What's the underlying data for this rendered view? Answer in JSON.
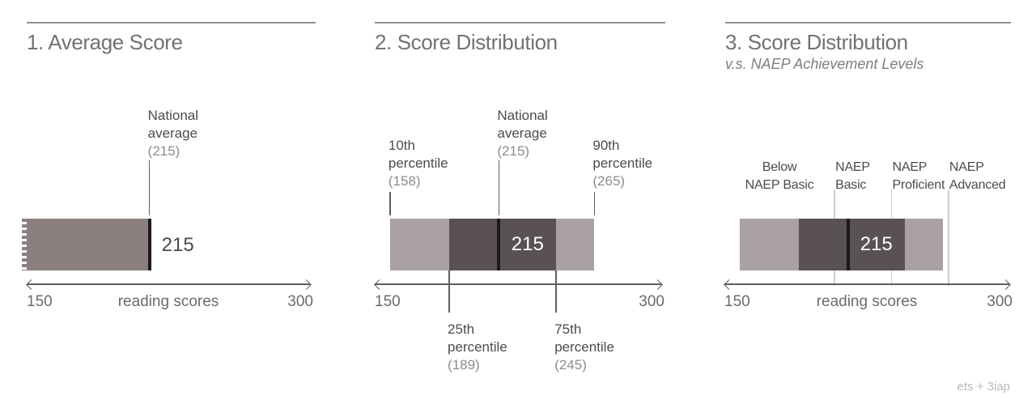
{
  "page": {
    "attribution": "ets + 3iap"
  },
  "colors": {
    "bar_medium": "#8b807f",
    "bar_light": "#aaa2a2",
    "bar_dark": "#5a5152",
    "marker_black": "#1b1b1b",
    "leader_dark": "#5f5f5f",
    "leader_light": "#d2cfcf",
    "axis": "#5d5d5d",
    "title_text": "#727272",
    "annotation_text": "#4b4b4b",
    "annotation_value_text": "#8d8d8d",
    "bar_value_on_dark": "#ffffff",
    "attribution_text": "#b9b9b9"
  },
  "chart_data": [
    {
      "type": "bar",
      "title": "1. Average Score",
      "subtitle": "",
      "xlabel": "reading scores",
      "xlim": [
        150,
        300
      ],
      "axis_labels": {
        "min": "150",
        "center": "reading scores",
        "max": "300"
      },
      "bar": {
        "segments": [
          {
            "from": 150,
            "to": 215,
            "color": "bar_medium",
            "torn_left": true
          }
        ],
        "marker_value": 215,
        "outside_value_label": "215"
      },
      "annotations_top": [
        {
          "lines": [
            "National",
            "average"
          ],
          "value_label": "(215)",
          "value": 215,
          "raised": true
        }
      ],
      "annotations_bottom": [],
      "thresholds": []
    },
    {
      "type": "bar",
      "title": "2. Score Distribution",
      "subtitle": "",
      "xlabel": "",
      "xlim": [
        150,
        300
      ],
      "axis_labels": {
        "min": "150",
        "center": "",
        "max": "300"
      },
      "bar": {
        "segments": [
          {
            "from": 158,
            "to": 189,
            "color": "bar_light"
          },
          {
            "from": 189,
            "to": 245,
            "color": "bar_dark"
          },
          {
            "from": 245,
            "to": 265,
            "color": "bar_light"
          }
        ],
        "marker_value": 215,
        "inside_value_label": {
          "text": "215",
          "center_value": 230
        }
      },
      "annotations_top": [
        {
          "lines": [
            "10th",
            "percentile"
          ],
          "value_label": "(158)",
          "value": 158,
          "raised": false
        },
        {
          "lines": [
            "National",
            "average"
          ],
          "value_label": "(215)",
          "value": 215,
          "raised": true
        },
        {
          "lines": [
            "90th",
            "percentile"
          ],
          "value_label": "(265)",
          "value": 265,
          "raised": false
        }
      ],
      "annotations_bottom": [
        {
          "lines": [
            "25th",
            "percentile"
          ],
          "value_label": "(189)",
          "value": 189
        },
        {
          "lines": [
            "75th",
            "percentile"
          ],
          "value_label": "(245)",
          "value": 245
        }
      ],
      "thresholds": []
    },
    {
      "type": "bar",
      "title": "3. Score Distribution",
      "subtitle": "v.s. NAEP Achievement Levels",
      "xlabel": "reading scores",
      "xlim": [
        150,
        300
      ],
      "axis_labels": {
        "min": "150",
        "center": "reading scores",
        "max": "300"
      },
      "bar": {
        "segments": [
          {
            "from": 158,
            "to": 189,
            "color": "bar_light"
          },
          {
            "from": 189,
            "to": 245,
            "color": "bar_dark"
          },
          {
            "from": 245,
            "to": 265,
            "color": "bar_light"
          }
        ],
        "marker_value": 215,
        "inside_value_label": {
          "text": "215",
          "center_value": 230
        }
      },
      "annotations_top": [],
      "annotations_bottom": [],
      "thresholds": [
        {
          "lines": [
            "Below",
            "NAEP Basic"
          ],
          "center_value": 179,
          "has_line": false
        },
        {
          "lines": [
            "NAEP",
            "Basic"
          ],
          "value": 208,
          "has_line": true
        },
        {
          "lines": [
            "NAEP",
            "Proficient"
          ],
          "value": 238,
          "has_line": true
        },
        {
          "lines": [
            "NAEP",
            "Advanced"
          ],
          "value": 268,
          "has_line": true
        }
      ]
    }
  ]
}
